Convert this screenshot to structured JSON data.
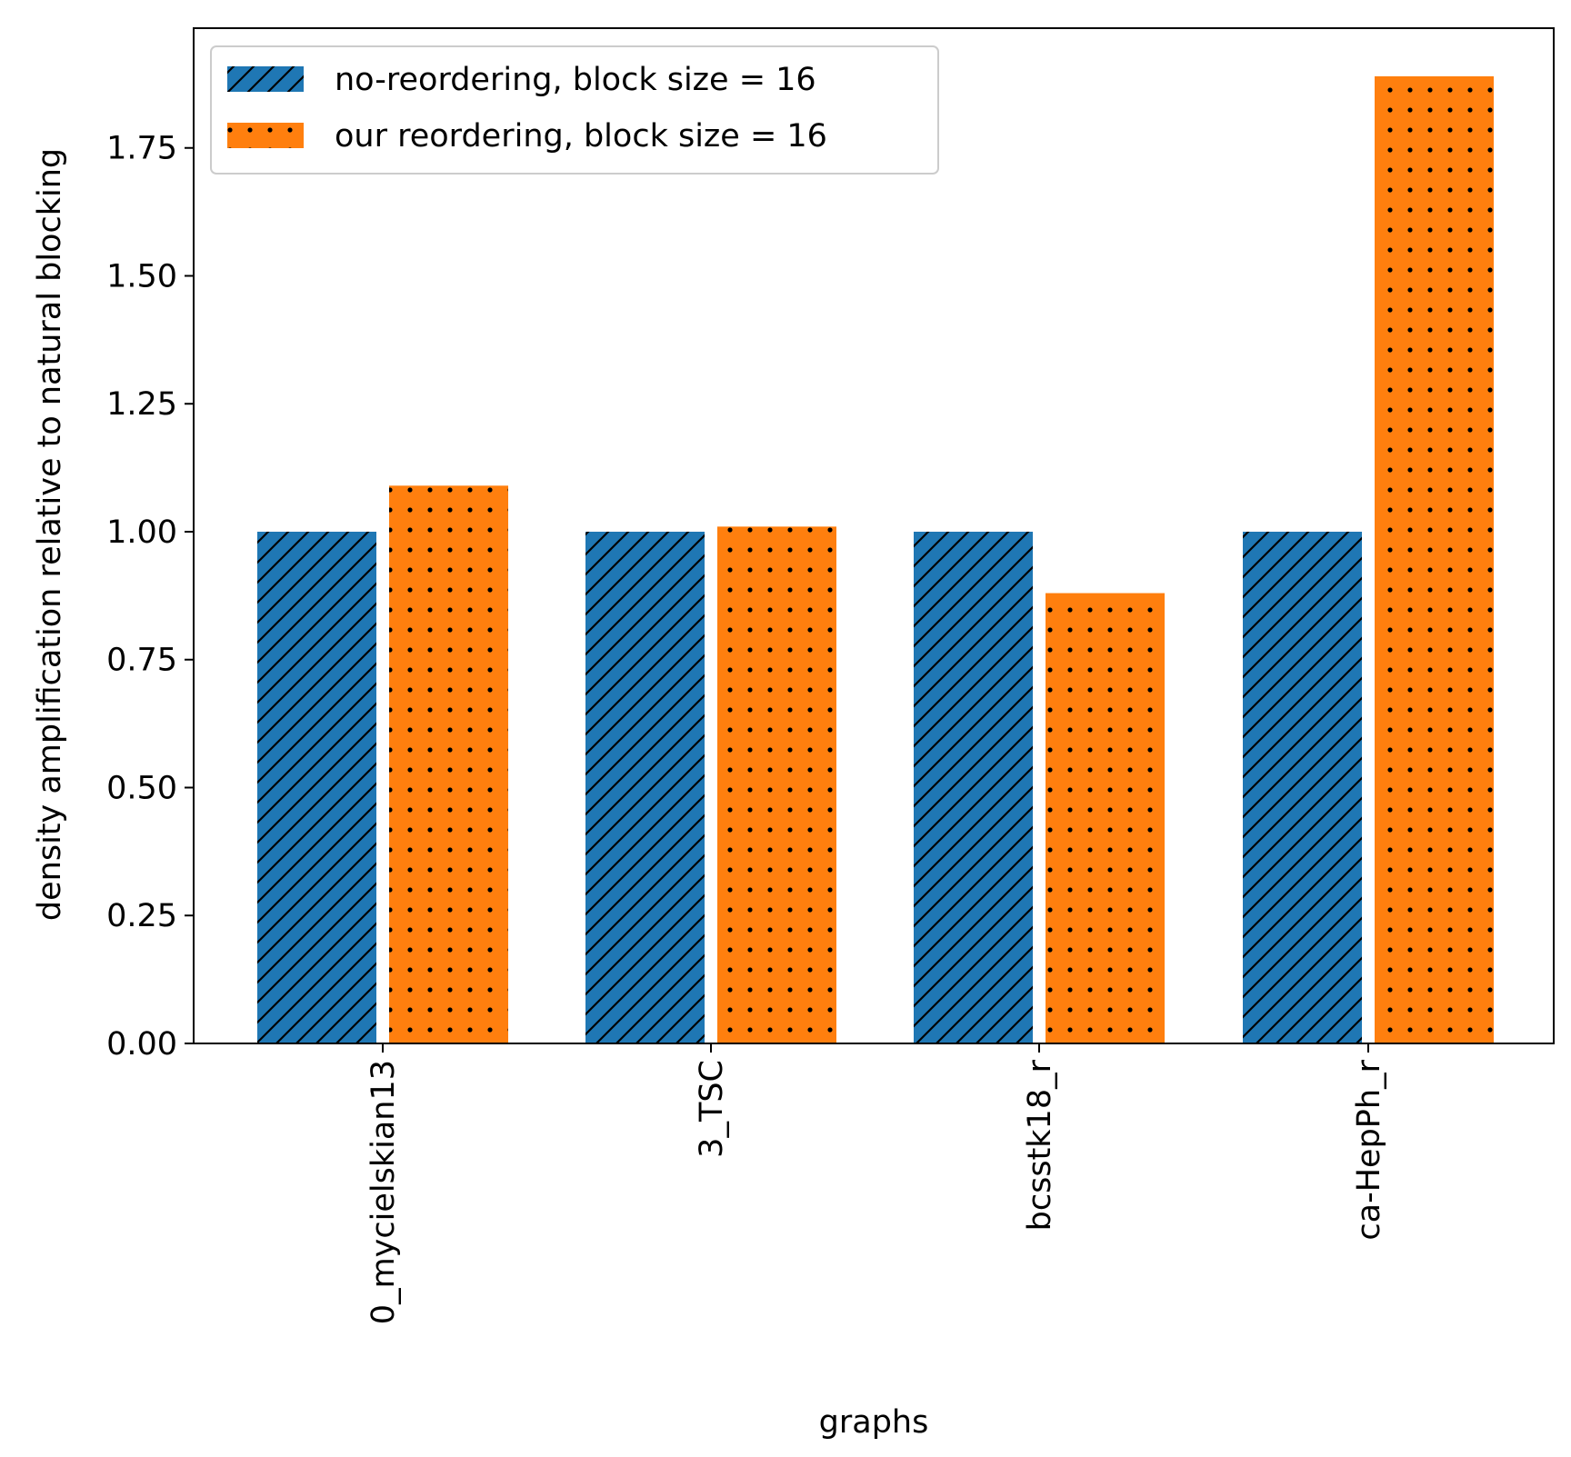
{
  "chart_data": {
    "type": "bar",
    "title": "",
    "xlabel": "graphs",
    "ylabel": "density amplification relative to natural blocking",
    "categories": [
      "0_mycielskian13",
      "3_TSC",
      "bcsstk18_r",
      "ca-HepPh_r"
    ],
    "series": [
      {
        "name": "no-reordering, block size = 16",
        "values": [
          1.0,
          1.0,
          1.0,
          1.0
        ],
        "color": "#1f77b4",
        "hatch": "diagonal-lines"
      },
      {
        "name": "our reordering, block size = 16",
        "values": [
          1.09,
          1.01,
          0.88,
          1.89
        ],
        "color": "#ff7f0e",
        "hatch": "dots"
      }
    ],
    "ylim": [
      0,
      1.984
    ],
    "yticks": [
      {
        "value": 0.0,
        "label": "0.00"
      },
      {
        "value": 0.25,
        "label": "0.25"
      },
      {
        "value": 0.5,
        "label": "0.50"
      },
      {
        "value": 0.75,
        "label": "0.75"
      },
      {
        "value": 1.0,
        "label": "1.00"
      },
      {
        "value": 1.25,
        "label": "1.25"
      },
      {
        "value": 1.5,
        "label": "1.50"
      },
      {
        "value": 1.75,
        "label": "1.75"
      }
    ],
    "xtick_rotation": "vertical",
    "grid": false,
    "legend_position": "top-left"
  }
}
